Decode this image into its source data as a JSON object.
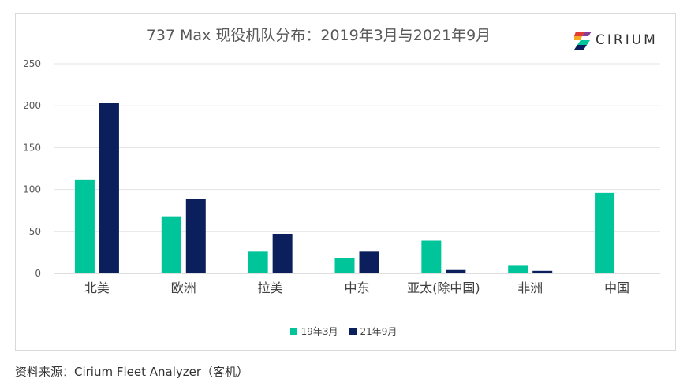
{
  "chart_data": {
    "type": "bar",
    "title": "737 Max 现役机队分布：2019年3月与2021年9月",
    "categories": [
      "北美",
      "欧洲",
      "拉美",
      "中东",
      "亚太(除中国)",
      "非洲",
      "中国"
    ],
    "series": [
      {
        "name": "19年3月",
        "color": "#00c49a",
        "values": [
          112,
          68,
          26,
          18,
          39,
          9,
          96
        ]
      },
      {
        "name": "21年9月",
        "color": "#0a1f5c",
        "values": [
          203,
          89,
          47,
          26,
          4,
          3,
          0
        ]
      }
    ],
    "yticks": [
      0,
      50,
      100,
      150,
      200,
      250
    ],
    "ylim": [
      0,
      250
    ],
    "grid": true,
    "legend_position": "bottom"
  },
  "logo": {
    "text": "CIRIUM",
    "colors": [
      "#e03c31",
      "#f7a823",
      "#00c49a",
      "#0a1f5c",
      "#8a3c96"
    ]
  },
  "source": "资料来源：Cirium Fleet Analyzer（客机）"
}
